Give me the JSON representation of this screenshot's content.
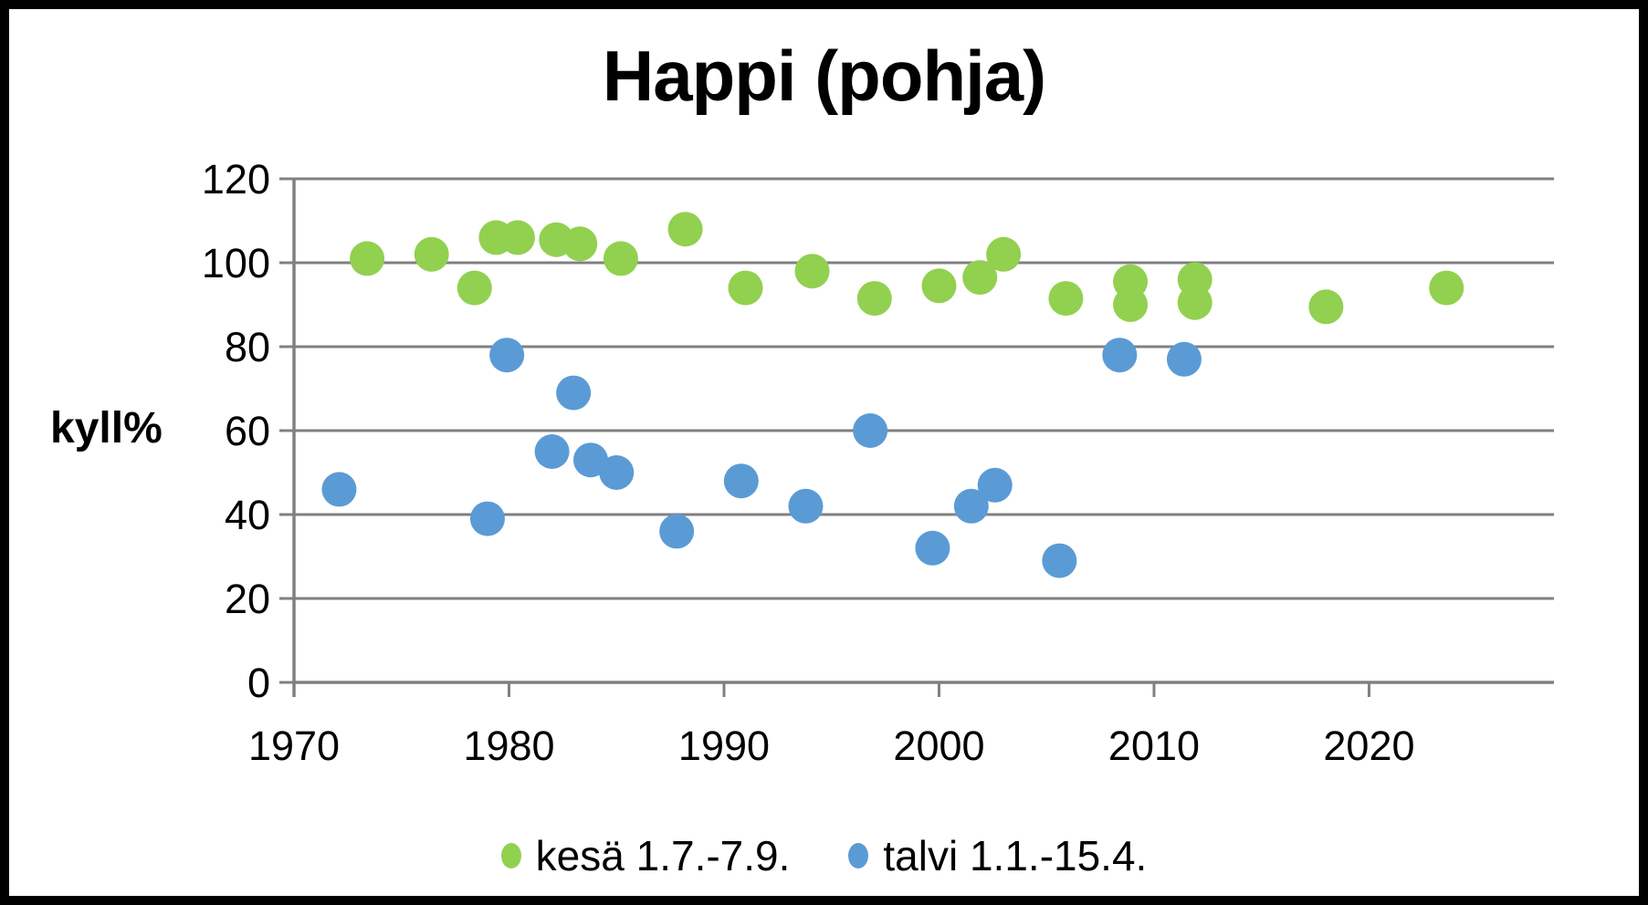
{
  "chart_data": {
    "type": "scatter",
    "title": "Happi (pohja)",
    "ylabel": "kyll%",
    "xlabel": "",
    "xlim": [
      1970,
      2028.6
    ],
    "ylim": [
      0,
      120
    ],
    "x_ticks": [
      "1970",
      "1980",
      "1990",
      "2000",
      "2010",
      "2020"
    ],
    "x_tick_values": [
      1970,
      1980,
      1990,
      2000,
      2010,
      2020
    ],
    "y_ticks": [
      "0",
      "20",
      "40",
      "60",
      "80",
      "100",
      "120"
    ],
    "y_tick_values": [
      0,
      20,
      40,
      60,
      80,
      100,
      120
    ],
    "grid": "horizontal",
    "legend_position": "bottom",
    "axis_color": "#808080",
    "text_color": "#000000",
    "background": "#ffffff",
    "frame_color": "#000000",
    "series": [
      {
        "id": "summer",
        "name": "kesä 1.7.-7.9.",
        "color": "#92D050",
        "points": [
          [
            1973.4,
            101
          ],
          [
            1976.4,
            102
          ],
          [
            1978.4,
            94
          ],
          [
            1979.4,
            106
          ],
          [
            1980.4,
            106
          ],
          [
            1982.2,
            105.5
          ],
          [
            1983.3,
            104.5
          ],
          [
            1985.2,
            101
          ],
          [
            1988.2,
            108
          ],
          [
            1991.0,
            94
          ],
          [
            1994.1,
            98
          ],
          [
            1997.0,
            91.5
          ],
          [
            2000.0,
            94.5
          ],
          [
            2001.9,
            96.5
          ],
          [
            2003.0,
            102
          ],
          [
            2005.9,
            91.5
          ],
          [
            2008.9,
            95.5
          ],
          [
            2008.9,
            90
          ],
          [
            2011.9,
            96
          ],
          [
            2011.9,
            90.5
          ],
          [
            2018.0,
            89.5
          ],
          [
            2023.6,
            94
          ]
        ]
      },
      {
        "id": "winter",
        "name": "talvi 1.1.-15.4.",
        "color": "#5B9BD5",
        "points": [
          [
            1972.1,
            46
          ],
          [
            1979.0,
            39
          ],
          [
            1979.9,
            78
          ],
          [
            1982.0,
            55
          ],
          [
            1983.0,
            69
          ],
          [
            1983.8,
            53
          ],
          [
            1985.0,
            50
          ],
          [
            1987.8,
            36
          ],
          [
            1990.8,
            48
          ],
          [
            1993.8,
            42
          ],
          [
            1996.8,
            60
          ],
          [
            1999.7,
            32
          ],
          [
            2001.5,
            42
          ],
          [
            2002.6,
            47
          ],
          [
            2005.6,
            29
          ],
          [
            2008.4,
            78
          ],
          [
            2011.4,
            77
          ]
        ]
      }
    ]
  }
}
